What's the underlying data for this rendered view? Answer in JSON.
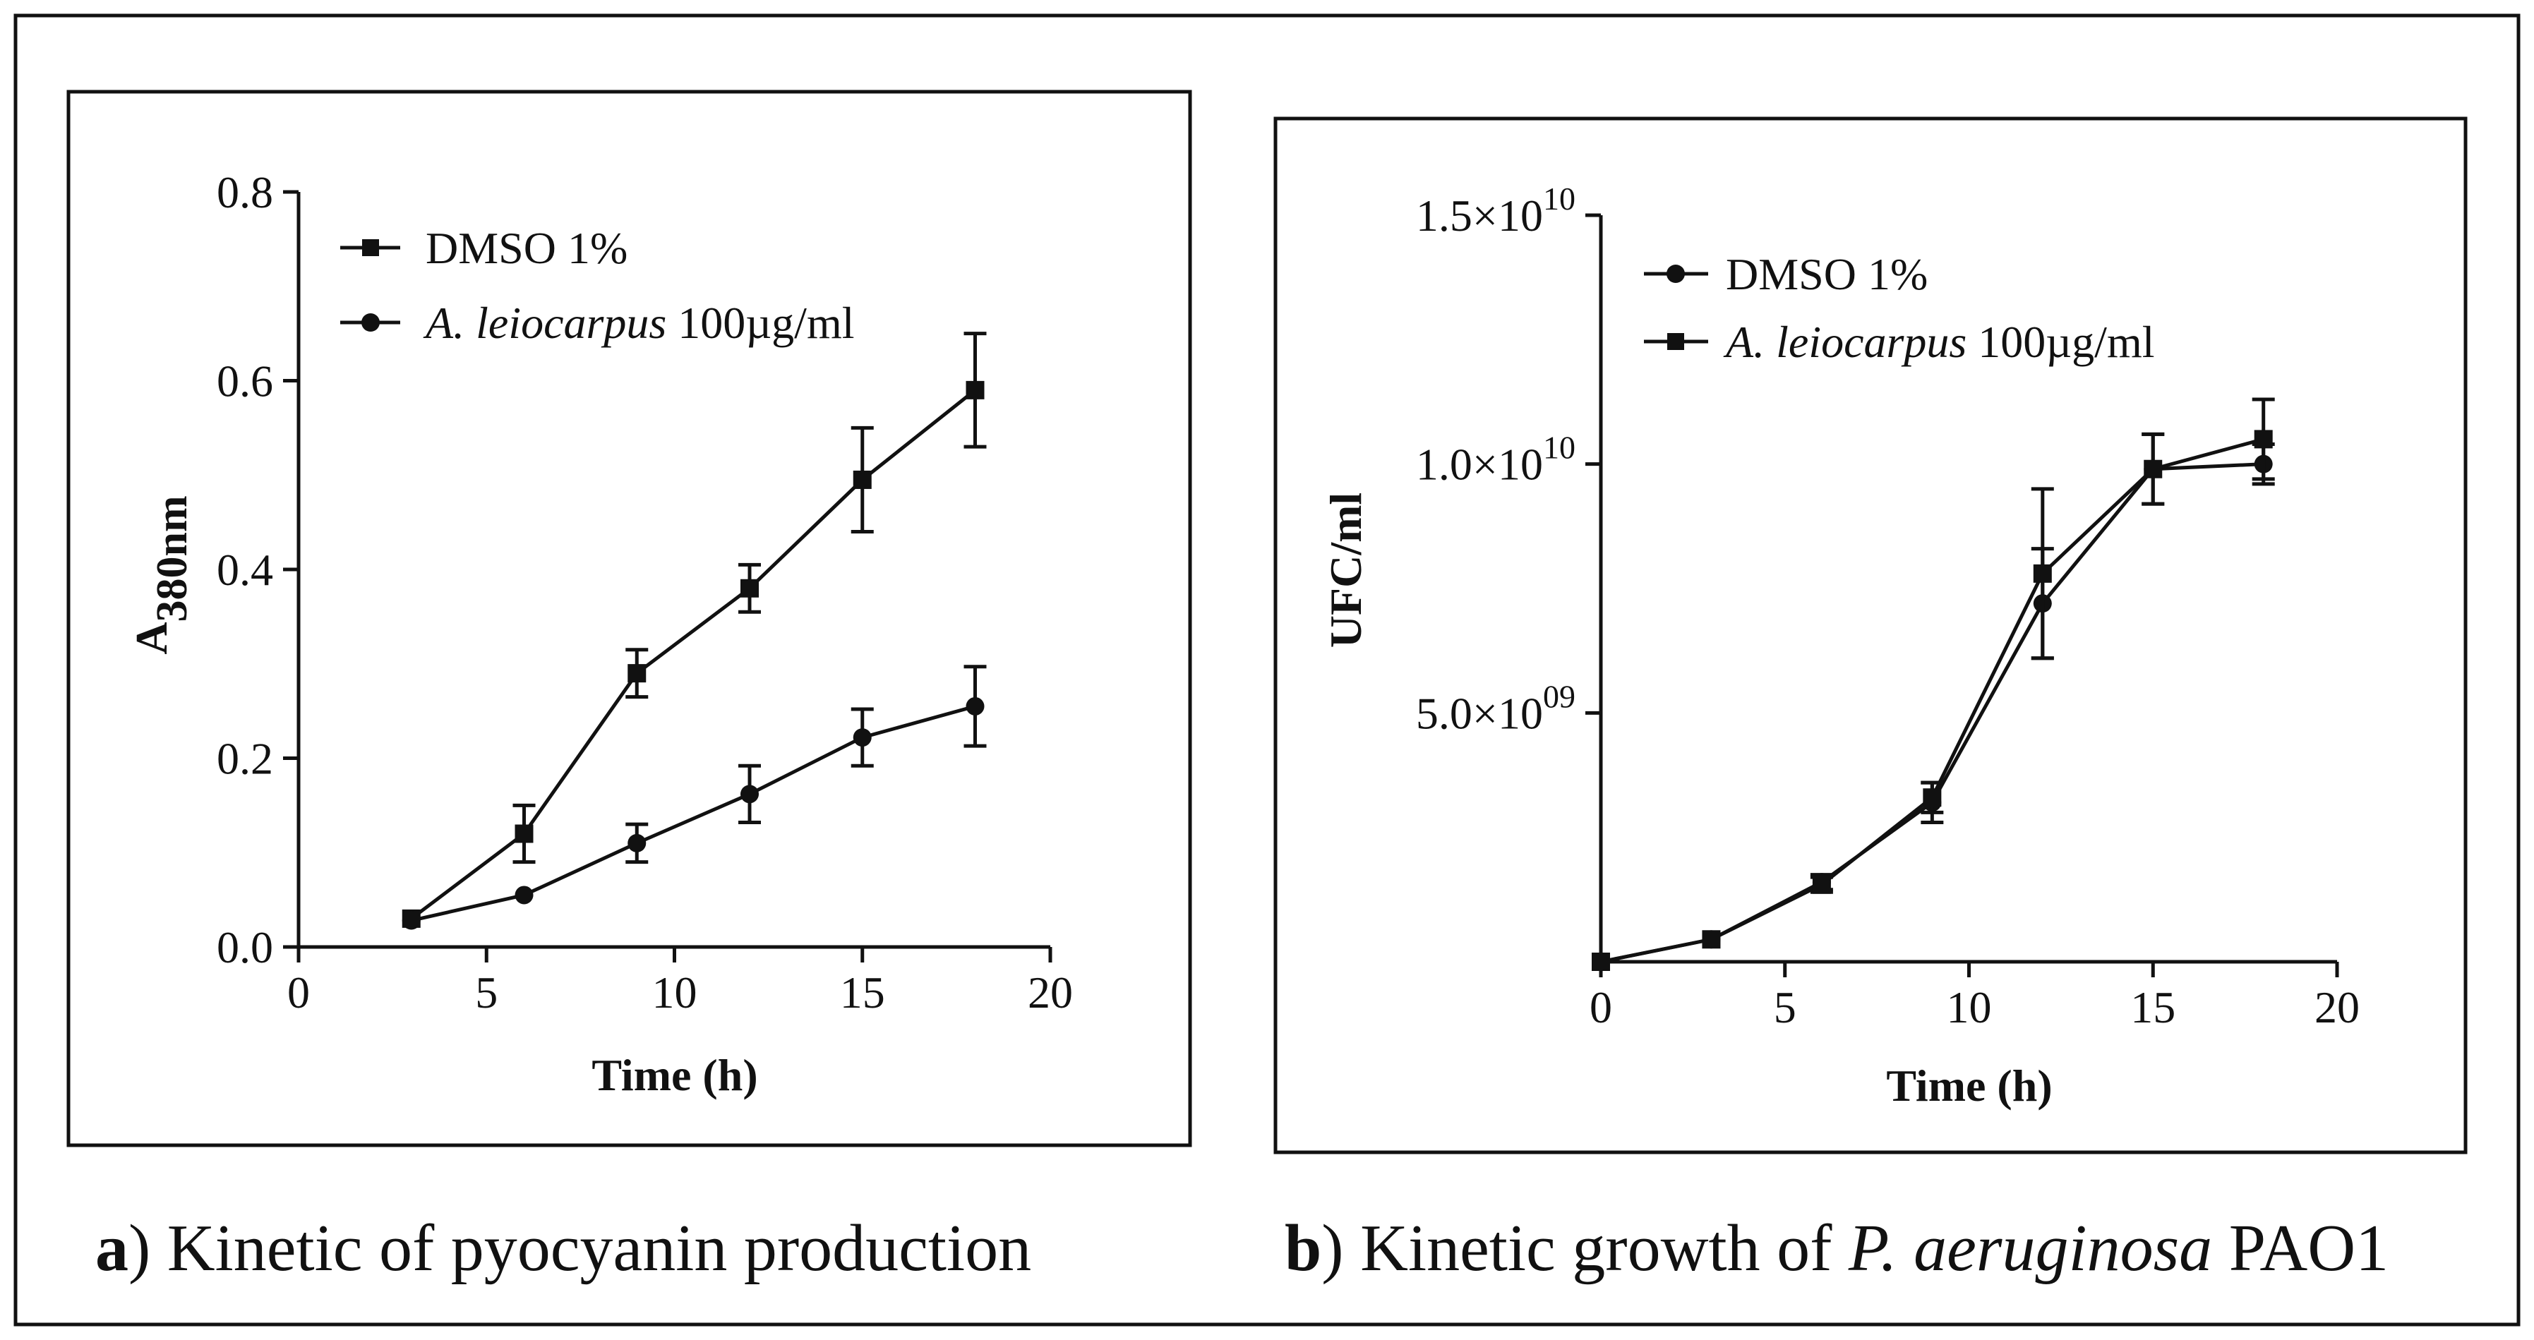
{
  "figure": {
    "caption_a": {
      "label": "a",
      "text": ") Kinetic of pyocyanin production"
    },
    "caption_b": {
      "label": "b",
      "prefix": ") Kinetic growth of ",
      "species": "P. aeruginosa",
      "suffix": " PAO1"
    }
  },
  "chart_data": [
    {
      "type": "line",
      "panel": "a",
      "title": "",
      "xlabel": "Time (h)",
      "ylabel_main": "A",
      "ylabel_sub": "380nm",
      "xlim": [
        0,
        20
      ],
      "ylim": [
        0,
        0.8
      ],
      "xticks": [
        0,
        5,
        10,
        15,
        20
      ],
      "xtick_labels": [
        "0",
        "5",
        "10",
        "15",
        "20"
      ],
      "yticks": [
        0,
        0.2,
        0.4,
        0.6,
        0.8
      ],
      "ytick_labels": [
        "0.0",
        "0.2",
        "0.4",
        "0.6",
        "0.8"
      ],
      "grid": false,
      "legend_position": "top-left",
      "series": [
        {
          "name": "DMSO 1%",
          "name_italic": "",
          "name_rest": "DMSO 1%",
          "marker": "square",
          "x": [
            3,
            6,
            9,
            12,
            15,
            18
          ],
          "y": [
            0.03,
            0.12,
            0.29,
            0.38,
            0.495,
            0.59
          ],
          "err": [
            0.005,
            0.03,
            0.025,
            0.025,
            0.055,
            0.06
          ]
        },
        {
          "name": "A. leiocarpus 100µg/ml",
          "name_italic": "A. leiocarpus",
          "name_rest": " 100µg/ml",
          "marker": "circle",
          "x": [
            3,
            6,
            9,
            12,
            15,
            18
          ],
          "y": [
            0.028,
            0.055,
            0.11,
            0.162,
            0.222,
            0.255
          ],
          "err": [
            0.004,
            0.005,
            0.02,
            0.03,
            0.03,
            0.042
          ]
        }
      ]
    },
    {
      "type": "line",
      "panel": "b",
      "title": "",
      "xlabel": "Time (h)",
      "ylabel_main": "UFC/ml",
      "ylabel_sub": "",
      "xlim": [
        0,
        20
      ],
      "ylim": [
        0,
        15000000000
      ],
      "xticks": [
        0,
        5,
        10,
        15,
        20
      ],
      "xtick_labels": [
        "0",
        "5",
        "10",
        "15",
        "20"
      ],
      "yticks": [
        5000000000,
        10000000000,
        15000000000
      ],
      "ytick_mantissas": [
        "5.0×10",
        "1.0×10",
        "1.5×10"
      ],
      "ytick_exponents": [
        "09",
        "10",
        "10"
      ],
      "grid": false,
      "legend_position": "top-left",
      "series": [
        {
          "name": "DMSO 1%",
          "name_italic": "",
          "name_rest": "DMSO 1%",
          "marker": "circle",
          "x": [
            0,
            3,
            6,
            9,
            12,
            15,
            18
          ],
          "y": [
            0,
            450000000,
            1600000000,
            3200000000,
            7200000000,
            9900000000,
            10000000000
          ],
          "err": [
            0,
            0,
            150000000,
            400000000,
            1100000000,
            700000000,
            400000000
          ]
        },
        {
          "name": "A. leiocarpus 100µg/ml",
          "name_italic": "A. leiocarpus",
          "name_rest": " 100µg/ml",
          "marker": "square",
          "x": [
            0,
            3,
            6,
            9,
            12,
            15,
            18
          ],
          "y": [
            0,
            450000000,
            1550000000,
            3300000000,
            7800000000,
            9900000000,
            10500000000
          ],
          "err": [
            0,
            0,
            150000000,
            300000000,
            1700000000,
            700000000,
            800000000
          ]
        }
      ]
    }
  ]
}
